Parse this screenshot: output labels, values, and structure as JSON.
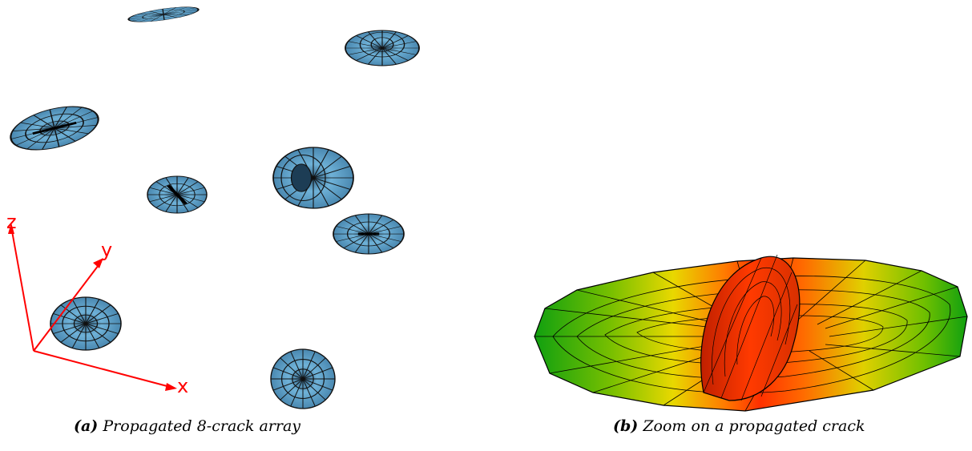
{
  "figure": {
    "panel_a": {
      "label": "(a)",
      "caption": "Propagated 8-crack array",
      "axes": {
        "x": "x",
        "y": "y",
        "z": "z"
      },
      "crack_count": 8,
      "crack_color": "#5f9fc8",
      "axis_color": "#ff0000"
    },
    "panel_b": {
      "label": "(b)",
      "caption": "Zoom on a propagated crack",
      "colormap": [
        "#00a000",
        "#e8e000",
        "#ff3000"
      ]
    }
  }
}
